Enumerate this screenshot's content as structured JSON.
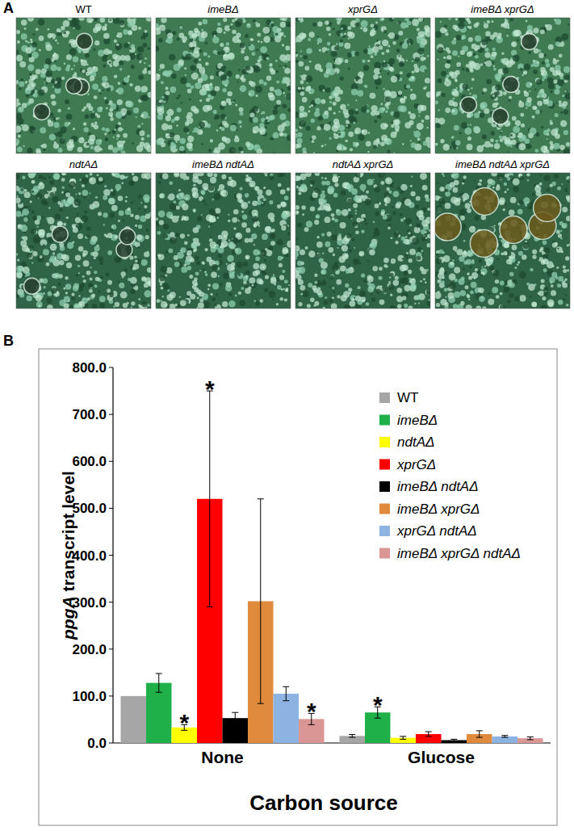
{
  "panel_a": {
    "label": "A",
    "images": [
      "WT",
      "imeBΔ",
      "xprGΔ",
      "imeBΔ xprGΔ",
      "ndtAΔ",
      "imeBΔ ndtAΔ",
      "ndtAΔ xprGΔ",
      "imeBΔ ndtAΔ xprGΔ"
    ]
  },
  "chart_data": {
    "type": "bar",
    "panel_label": "B",
    "x_label": "Carbon source",
    "y_label": "ppgA transcript level",
    "categories": [
      "None",
      "Glucose"
    ],
    "ylim": [
      0,
      800
    ],
    "yticks": [
      {
        "value": 0,
        "label": "0.0"
      },
      {
        "value": 100,
        "label": "100.0"
      },
      {
        "value": 200,
        "label": "200.0"
      },
      {
        "value": 300,
        "label": "300.0"
      },
      {
        "value": 400,
        "label": "400.0"
      },
      {
        "value": 500,
        "label": "500.0"
      },
      {
        "value": 600,
        "label": "600.0"
      },
      {
        "value": 700,
        "label": "700.0"
      },
      {
        "value": 800,
        "label": "800.0"
      }
    ],
    "grid": false,
    "legend": "upper right",
    "series": [
      {
        "name": "WT",
        "color": "#a6a6a6",
        "values": [
          100,
          15
        ],
        "errors": [
          null,
          3
        ],
        "annotations": [
          null,
          null
        ]
      },
      {
        "name": "imeBΔ",
        "color": "#1fb04a",
        "values": [
          128,
          65
        ],
        "errors": [
          20,
          12
        ],
        "annotations": [
          null,
          "*"
        ]
      },
      {
        "name": "ndtAΔ",
        "color": "#ffff00",
        "values": [
          33,
          11
        ],
        "errors": [
          6,
          3
        ],
        "annotations": [
          "*",
          null
        ]
      },
      {
        "name": "xprGΔ",
        "color": "#ff0000",
        "values": [
          520,
          19
        ],
        "errors": [
          230,
          5
        ],
        "annotations": [
          "*",
          null
        ]
      },
      {
        "name": "imeBΔ ndtAΔ",
        "color": "#000000",
        "values": [
          53,
          6
        ],
        "errors": [
          12,
          2
        ],
        "annotations": [
          null,
          null
        ]
      },
      {
        "name": "imeBΔ xprGΔ",
        "color": "#df8a3c",
        "values": [
          302,
          19
        ],
        "errors": [
          218,
          7
        ],
        "annotations": [
          null,
          null
        ]
      },
      {
        "name": "xprGΔ ndtAΔ",
        "color": "#8db3e2",
        "values": [
          105,
          14
        ],
        "errors": [
          15,
          2
        ],
        "annotations": [
          null,
          null
        ]
      },
      {
        "name": "imeBΔ xprGΔ ndtAΔ",
        "color": "#d99694",
        "values": [
          51,
          10
        ],
        "errors": [
          12,
          3
        ],
        "annotations": [
          "*",
          null
        ]
      }
    ]
  }
}
